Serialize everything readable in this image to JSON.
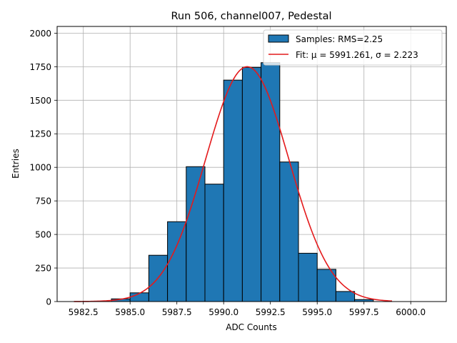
{
  "chart_data": {
    "type": "bar",
    "title": "Run 506, channel007, Pedestal",
    "xlabel": "ADC Counts",
    "ylabel": "Entries",
    "xlim": [
      5981.1,
      6001.9
    ],
    "ylim": [
      0,
      2050
    ],
    "xticks": [
      5982.5,
      5985.0,
      5987.5,
      5990.0,
      5992.5,
      5995.0,
      5997.5,
      6000.0
    ],
    "xtick_labels": [
      "5982.5",
      "5985.0",
      "5987.5",
      "5990.0",
      "5992.5",
      "5995.0",
      "5997.5",
      "6000.0"
    ],
    "yticks": [
      0,
      250,
      500,
      750,
      1000,
      1250,
      1500,
      1750,
      2000
    ],
    "ytick_labels": [
      "0",
      "250",
      "500",
      "750",
      "1000",
      "1250",
      "1500",
      "1750",
      "2000"
    ],
    "grid": true,
    "legend_position": "top-right",
    "bin_edges": [
      5982.0,
      5983.0,
      5984.0,
      5985.0,
      5986.0,
      5987.0,
      5988.0,
      5989.0,
      5990.0,
      5991.0,
      5992.0,
      5993.0,
      5994.0,
      5995.0,
      5996.0,
      5997.0,
      5998.0,
      5999.0,
      6000.0,
      6001.0
    ],
    "values": [
      0,
      0,
      20,
      65,
      345,
      595,
      1005,
      875,
      1650,
      1745,
      1780,
      1040,
      360,
      240,
      75,
      15,
      0,
      0,
      0
    ],
    "series": [
      {
        "name": "Samples: RMS=2.25",
        "kind": "histogram",
        "color": "#1f77b4",
        "edgecolor": "#000000"
      },
      {
        "name": "Fit: μ = 5991.261, σ = 2.223",
        "kind": "line",
        "color": "#e41a1c",
        "mu": 5991.261,
        "sigma": 2.223,
        "amplitude": 1750,
        "x_range": [
          5982.0,
          5999.0
        ]
      }
    ]
  }
}
